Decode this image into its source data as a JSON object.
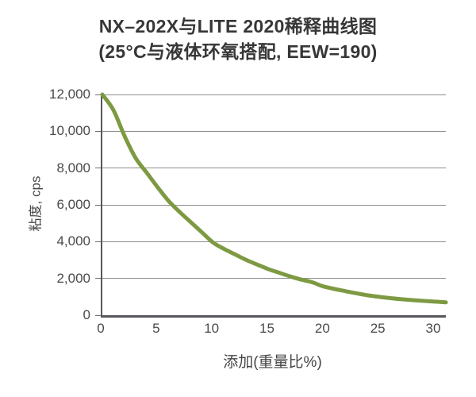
{
  "title": {
    "line1": "NX–202X与LITE 2020稀释曲线图",
    "line2": "(25°C与液体环氧搭配, EEW=190)"
  },
  "chart_data": {
    "type": "line",
    "title": "NX–202X与LITE 2020稀释曲线图 (25°C与液体环氧搭配, EEW=190)",
    "xlabel": "添加(重量比%)",
    "ylabel": "粘度, cps",
    "xlim": [
      0,
      31
    ],
    "ylim": [
      0,
      12000
    ],
    "x_ticks": [
      0,
      5,
      10,
      15,
      20,
      25,
      30
    ],
    "y_ticks": [
      0,
      2000,
      4000,
      6000,
      8000,
      10000,
      12000
    ],
    "y_tick_labels": [
      "0",
      "2,000",
      "4,000",
      "6,000",
      "8,000",
      "10,000",
      "12,000"
    ],
    "grid": "horizontal-only",
    "legend": "none",
    "series": [
      {
        "name": "NX-202X dilution curve",
        "color": "#7d9a42",
        "points": [
          [
            0,
            12000
          ],
          [
            1,
            11150
          ],
          [
            2,
            9750
          ],
          [
            3,
            8550
          ],
          [
            4,
            7750
          ],
          [
            5,
            6950
          ],
          [
            6,
            6200
          ],
          [
            7,
            5600
          ],
          [
            8,
            5050
          ],
          [
            9,
            4500
          ],
          [
            10,
            3950
          ],
          [
            11,
            3600
          ],
          [
            12,
            3300
          ],
          [
            13,
            3000
          ],
          [
            14,
            2750
          ],
          [
            15,
            2500
          ],
          [
            16,
            2300
          ],
          [
            17,
            2100
          ],
          [
            18,
            1930
          ],
          [
            19,
            1780
          ],
          [
            20,
            1560
          ],
          [
            22,
            1300
          ],
          [
            24,
            1080
          ],
          [
            26,
            930
          ],
          [
            28,
            820
          ],
          [
            30,
            740
          ],
          [
            31,
            700
          ]
        ]
      }
    ]
  },
  "colors": {
    "curve": "#7d9a42",
    "gridline": "#8d8d8d",
    "axis": "#56575b",
    "title_text": "#373737",
    "axis_text": "#4a4a4a",
    "background": "#ffffff"
  }
}
